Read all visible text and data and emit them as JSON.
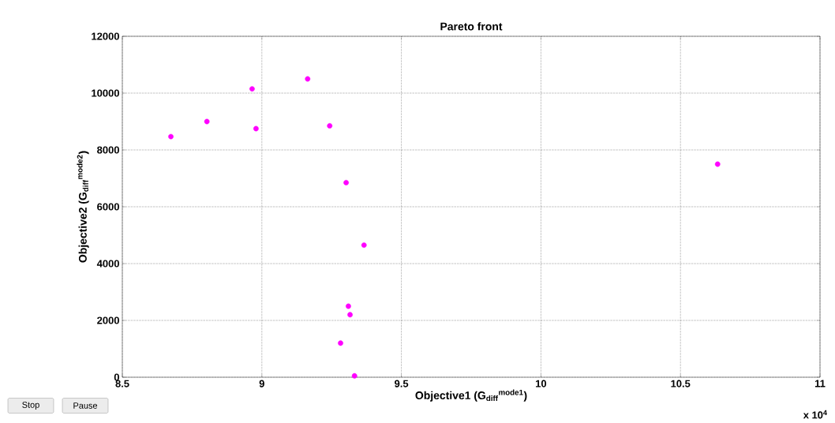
{
  "chart_data": {
    "type": "scatter",
    "title": "Pareto front",
    "xlabel": "Objective1 (G$_{diff}$$^{mode1}$)",
    "ylabel": "Objective2 (G$_{diff}$$^{mode2}$)",
    "x": [
      8.674,
      8.803,
      8.965,
      8.979,
      9.164,
      9.243,
      9.302,
      9.366,
      9.31,
      9.316,
      9.282,
      9.332,
      10.633
    ],
    "values": [
      8470,
      9000,
      10150,
      8750,
      10500,
      8850,
      6850,
      4650,
      2500,
      2200,
      1200,
      50,
      7500
    ],
    "color": "#ff00ff",
    "marker": "circle",
    "grid": true,
    "xlim": [
      8.5,
      11
    ],
    "ylim": [
      0,
      12000
    ],
    "xticks": [
      8.5,
      9,
      9.5,
      10,
      10.5,
      11
    ],
    "yticks": [
      0,
      2000,
      4000,
      6000,
      8000,
      10000,
      12000
    ],
    "annotations": [
      "x 10$^{4}$",
      "Stop",
      "Pause"
    ]
  }
}
